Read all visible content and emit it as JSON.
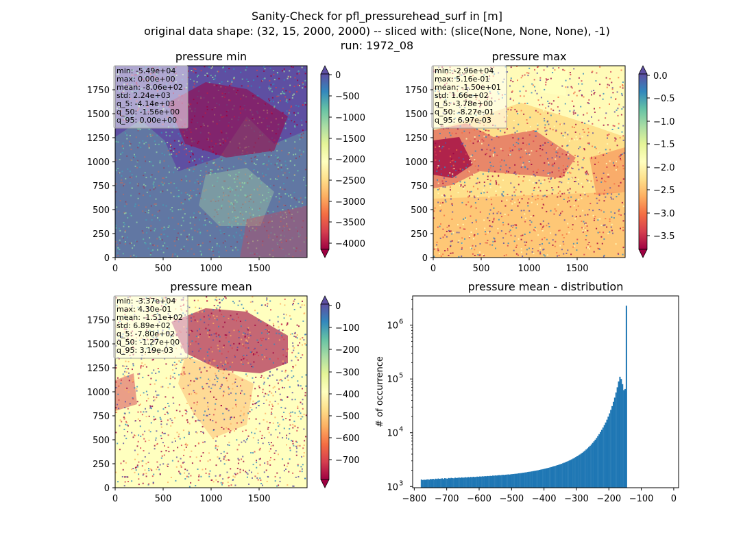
{
  "figure": {
    "title_lines": [
      "Sanity-Check for pfl_pressurehead_surf in [m]",
      "original data shape: (32, 15, 2000, 2000) -- sliced with: (slice(None, None, None), -1)",
      "run: 1972_08"
    ]
  },
  "panels": [
    {
      "title": "pressure min",
      "colormap": "Spectral",
      "stats": [
        "min: -5.49e+04",
        "max: 0.00e+00",
        "mean: -8.06e+02",
        "std: 2.24e+03",
        "q_5: -4.14e+03",
        "q_50: -1.56e+00",
        "q_95: 0.00e+00"
      ],
      "xticks": [
        "0",
        "500",
        "1000",
        "1500"
      ],
      "yticks": [
        "0",
        "250",
        "500",
        "750",
        "1000",
        "1250",
        "1500",
        "1750"
      ],
      "colorbar_ticks": [
        "0",
        "−500",
        "−1000",
        "−1500",
        "−2000",
        "−2500",
        "−3000",
        "−3500",
        "−4000"
      ],
      "colorbar_range": [
        -4140,
        0
      ],
      "extend": "both"
    },
    {
      "title": "pressure max",
      "colormap": "Spectral",
      "stats": [
        "min: -2.96e+04",
        "max: 5.16e-01",
        "mean: -1.50e+01",
        "std: 1.66e+02",
        "q_5: -3.78e+00",
        "q_50: -8.27e-01",
        "q_95: 6.97e-03"
      ],
      "xticks": [
        "0",
        "500",
        "1000",
        "1500"
      ],
      "yticks": [
        "0",
        "250",
        "500",
        "750",
        "1000",
        "1250",
        "1500",
        "1750"
      ],
      "colorbar_ticks": [
        "0.0",
        "−0.5",
        "−1.0",
        "−1.5",
        "−2.0",
        "−2.5",
        "−3.0",
        "−3.5"
      ],
      "colorbar_range": [
        -3.78,
        0.00697
      ],
      "extend": "both"
    },
    {
      "title": "pressure mean",
      "colormap": "Spectral",
      "stats": [
        "min: -3.37e+04",
        "max: 4.30e-01",
        "mean: -1.51e+02",
        "std: 6.89e+02",
        "q_5: -7.80e+02",
        "q_50: -1.27e+00",
        "q_95: 3.19e-03"
      ],
      "xticks": [
        "0",
        "500",
        "1000",
        "1500"
      ],
      "yticks": [
        "0",
        "250",
        "500",
        "750",
        "1000",
        "1250",
        "1500",
        "1750"
      ],
      "colorbar_ticks": [
        "0",
        "−100",
        "−200",
        "−300",
        "−400",
        "−500",
        "−600",
        "−700"
      ],
      "colorbar_range": [
        -780,
        0.00319
      ],
      "extend": "both"
    }
  ],
  "chart_data": {
    "type": "bar",
    "title": "pressure mean - distribution",
    "xlabel": "",
    "ylabel": "# of occurrence",
    "yscale": "log",
    "xlim": [
      -805,
      15
    ],
    "ylim": [
      950,
      3500000
    ],
    "xticks": [
      -800,
      -700,
      -600,
      -500,
      -400,
      -300,
      -200,
      -100,
      0
    ],
    "xtick_labels": [
      "−800",
      "−700",
      "−600",
      "−500",
      "−400",
      "−300",
      "−200",
      "−100",
      "0"
    ],
    "yticks": [
      1000,
      10000,
      100000,
      1000000
    ],
    "ytick_bases": [
      "10",
      "10",
      "10",
      "10"
    ],
    "ytick_exps": [
      "3",
      "4",
      "5",
      "6"
    ],
    "bar_color": "#1f77b4",
    "bin_width": 4,
    "bin_start": -780,
    "counts": [
      1350,
      1320,
      1340,
      1330,
      1350,
      1360,
      1340,
      1380,
      1370,
      1390,
      1360,
      1400,
      1380,
      1410,
      1390,
      1400,
      1420,
      1380,
      1430,
      1410,
      1400,
      1440,
      1420,
      1450,
      1430,
      1420,
      1460,
      1440,
      1450,
      1470,
      1450,
      1480,
      1460,
      1470,
      1490,
      1470,
      1500,
      1480,
      1510,
      1490,
      1520,
      1500,
      1510,
      1530,
      1520,
      1540,
      1530,
      1550,
      1540,
      1560,
      1550,
      1570,
      1560,
      1580,
      1570,
      1600,
      1590,
      1610,
      1600,
      1620,
      1630,
      1620,
      1640,
      1650,
      1640,
      1660,
      1670,
      1680,
      1670,
      1690,
      1700,
      1710,
      1720,
      1730,
      1740,
      1760,
      1770,
      1780,
      1800,
      1810,
      1830,
      1840,
      1860,
      1880,
      1890,
      1910,
      1930,
      1950,
      1970,
      1990,
      2010,
      2040,
      2060,
      2090,
      2110,
      2140,
      2170,
      2200,
      2230,
      2260,
      2300,
      2340,
      2380,
      2420,
      2460,
      2500,
      2550,
      2600,
      2650,
      2710,
      2770,
      2830,
      2900,
      2970,
      3050,
      3130,
      3220,
      3320,
      3420,
      3540,
      3660,
      3790,
      3930,
      4080,
      4250,
      4440,
      4650,
      4880,
      5130,
      5410,
      5720,
      6070,
      6470,
      6920,
      7430,
      8010,
      8670,
      9430,
      10300,
      11300,
      12500,
      13900,
      15500,
      17500,
      19900,
      22900,
      26600,
      31300,
      37500,
      45000,
      56000,
      70000,
      90000,
      110000,
      100000,
      80000,
      62000,
      65000,
      2300000
    ]
  }
}
